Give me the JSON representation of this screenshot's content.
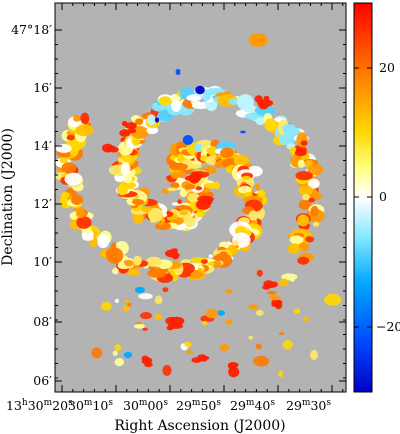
{
  "figure": {
    "x_axis_title": "Right Ascension (J2000)",
    "y_axis_title": "Declination (J2000)",
    "x_ticks": [
      {
        "h": "13",
        "hs": "h",
        "m": "30",
        "ms": "m",
        "s": "20",
        "ss": "s"
      },
      {
        "m": "30",
        "ms": "m",
        "s": "10",
        "ss": "s"
      },
      {
        "m": "30",
        "ms": "m",
        "s": "00",
        "ss": "s"
      },
      {
        "m": "29",
        "ms": "m",
        "s": "50",
        "ss": "s"
      },
      {
        "m": "29",
        "ms": "m",
        "s": "40",
        "ss": "s"
      },
      {
        "m": "29",
        "ms": "m",
        "s": "30",
        "ss": "s"
      }
    ],
    "y_ticks": [
      "47°18′",
      "16′",
      "14′",
      "12′",
      "10′",
      "08′",
      "06′"
    ],
    "colorbar": {
      "labels": [
        "20",
        "0",
        "−20"
      ],
      "gradient": [
        "#ff0000",
        "#ff7a00",
        "#ffd700",
        "#ffff7a",
        "#ffffff",
        "#88e8ff",
        "#00a8ff",
        "#0050ff",
        "#0000c8"
      ]
    },
    "background_color": "#b3b3b3"
  }
}
